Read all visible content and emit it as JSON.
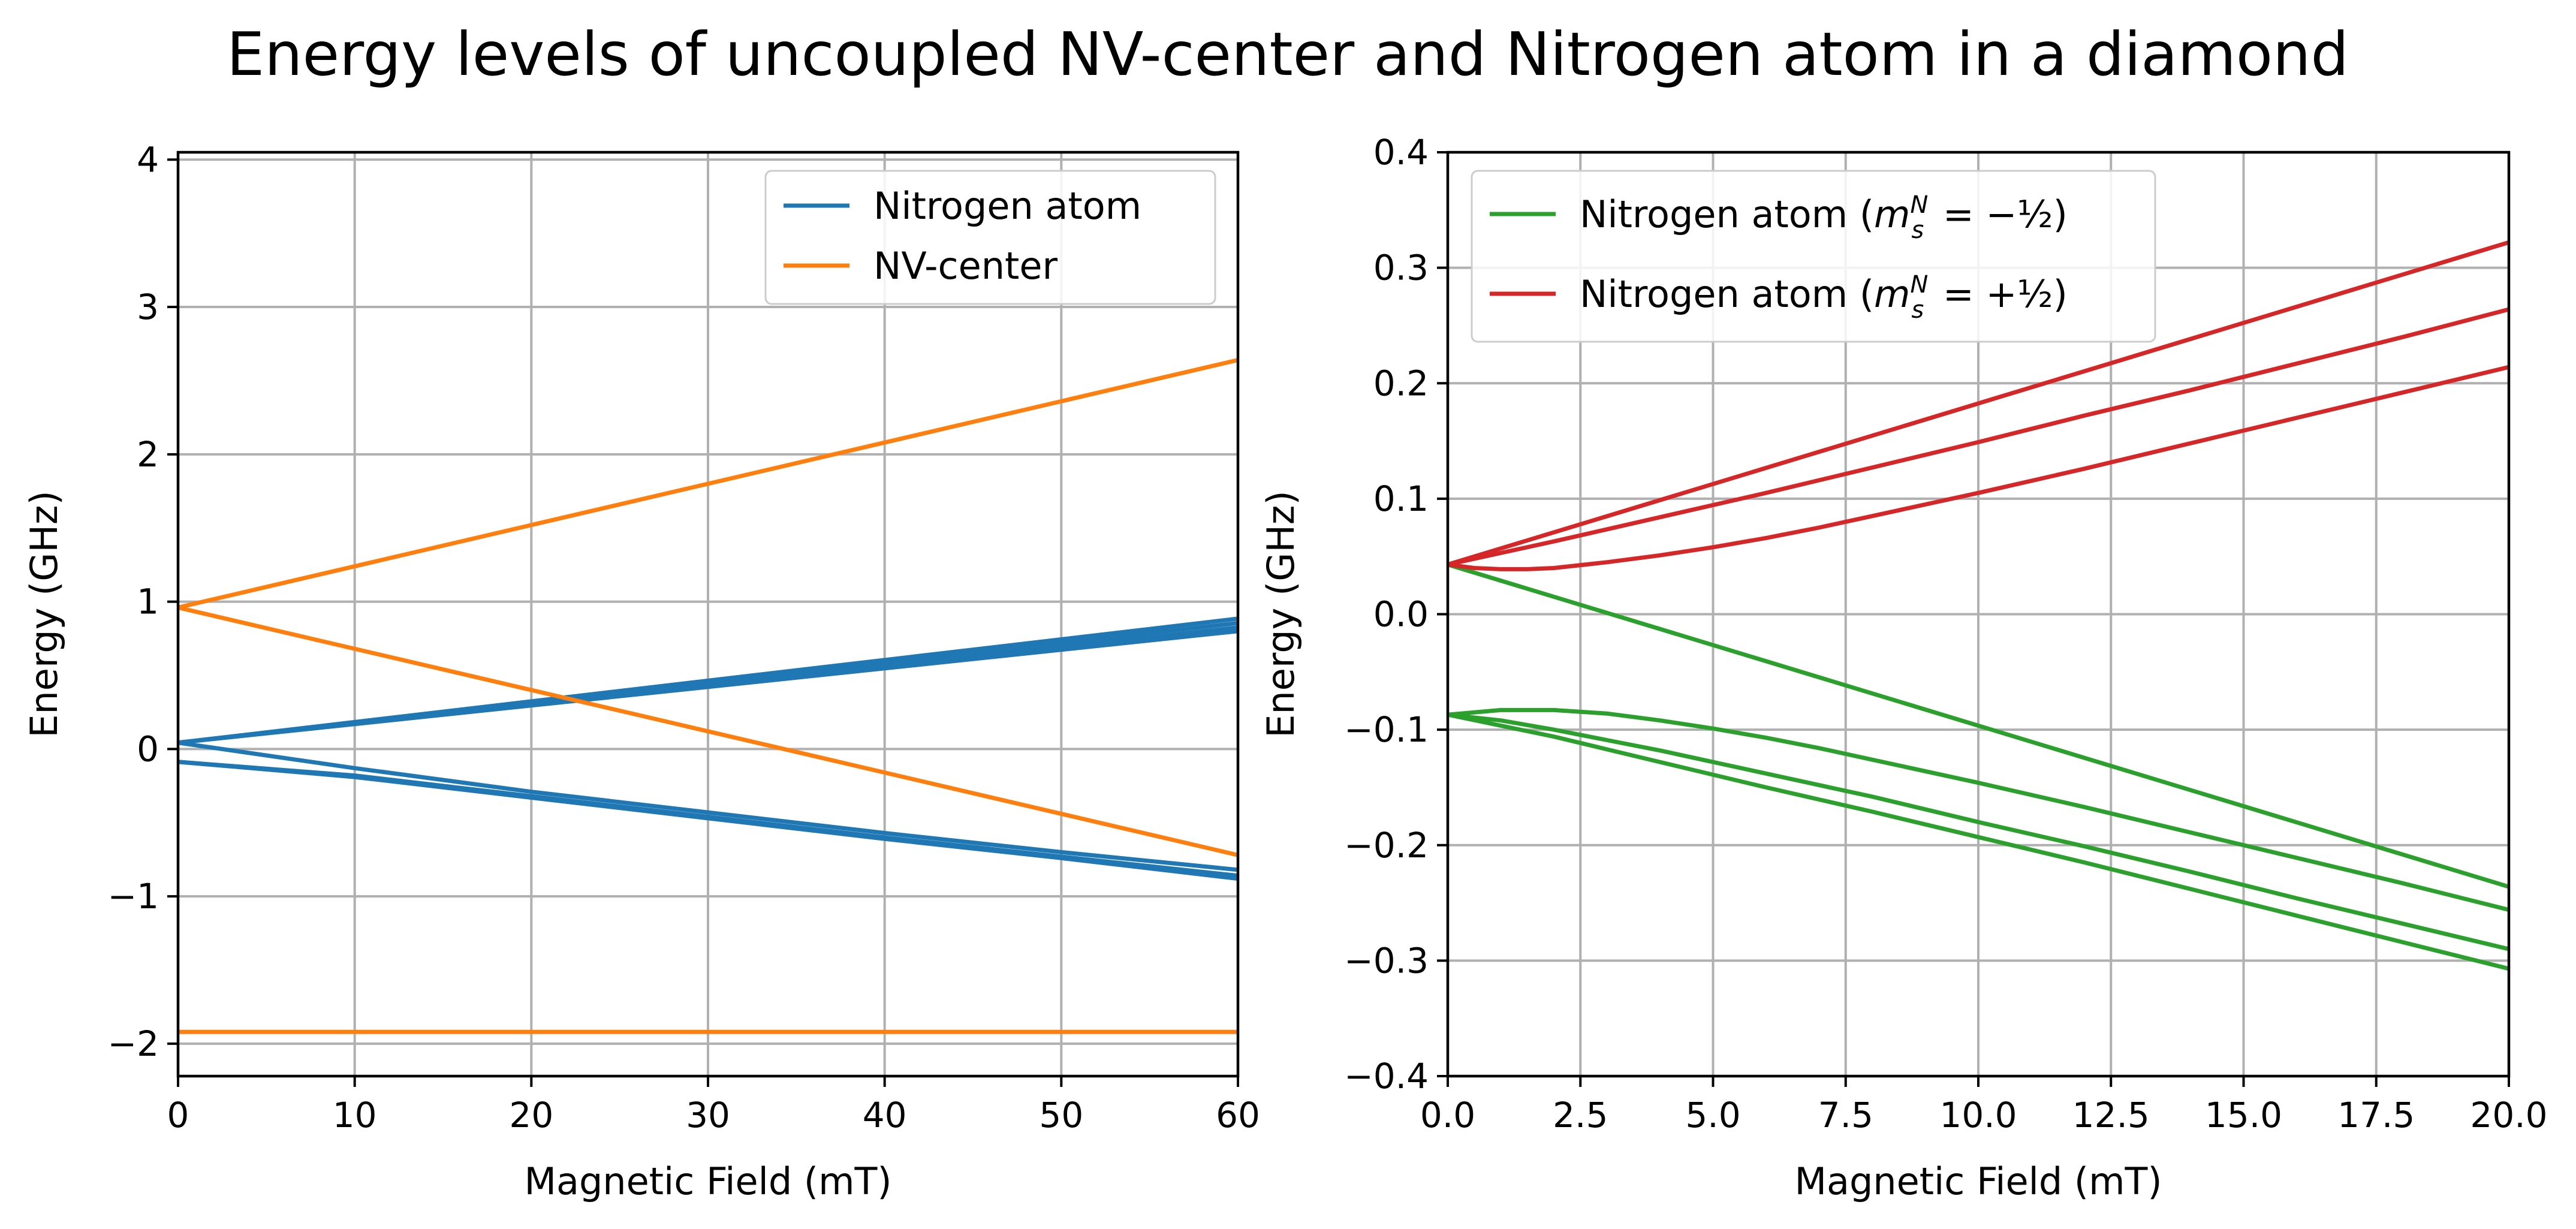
{
  "figure": {
    "suptitle": "Energy levels of uncoupled NV-center and Nitrogen atom in a diamond"
  },
  "chart_data": [
    {
      "type": "line",
      "title": "",
      "xlabel": "Magnetic Field (mT)",
      "ylabel": "Energy (GHz)",
      "xlim": [
        0,
        60
      ],
      "ylim": [
        -2.22,
        4.05
      ],
      "xticks": [
        0,
        10,
        20,
        30,
        40,
        50,
        60
      ],
      "xtick_labels": [
        "0",
        "10",
        "20",
        "30",
        "40",
        "50",
        "60"
      ],
      "yticks": [
        -2,
        -1,
        0,
        1,
        2,
        3,
        4
      ],
      "ytick_labels": [
        "−2",
        "−1",
        "0",
        "1",
        "2",
        "3",
        "4"
      ],
      "grid": true,
      "legend_position": "top-right",
      "legend": [
        {
          "label": "Nitrogen atom",
          "color": "#1f77b4"
        },
        {
          "label": "NV-center",
          "color": "#ff7f0e"
        }
      ],
      "series": [
        {
          "legend": "Nitrogen atom",
          "color": "#1f77b4",
          "x": [
            0,
            60
          ],
          "y": [
            0.043,
            0.885
          ]
        },
        {
          "legend": "Nitrogen atom",
          "color": "#1f77b4",
          "x": [
            0,
            60
          ],
          "y": [
            0.043,
            0.855
          ]
        },
        {
          "legend": "Nitrogen atom",
          "color": "#1f77b4",
          "x": [
            0,
            60
          ],
          "y": [
            0.043,
            0.825
          ]
        },
        {
          "legend": "Nitrogen atom",
          "color": "#1f77b4",
          "x": [
            0,
            60
          ],
          "y": [
            0.043,
            0.8
          ]
        },
        {
          "legend": "Nitrogen atom",
          "color": "#1f77b4",
          "x": [
            0,
            10,
            20,
            30,
            40,
            50,
            60
          ],
          "y": [
            0.043,
            -0.13,
            -0.29,
            -0.43,
            -0.57,
            -0.7,
            -0.82
          ]
        },
        {
          "legend": "Nitrogen atom",
          "color": "#1f77b4",
          "x": [
            0,
            10,
            20,
            30,
            40,
            50,
            60
          ],
          "y": [
            -0.087,
            -0.18,
            -0.32,
            -0.46,
            -0.6,
            -0.73,
            -0.86
          ]
        },
        {
          "legend": "Nitrogen atom",
          "color": "#1f77b4",
          "x": [
            0,
            10,
            20,
            30,
            40,
            50,
            60
          ],
          "y": [
            -0.087,
            -0.19,
            -0.33,
            -0.47,
            -0.61,
            -0.74,
            -0.88
          ]
        },
        {
          "legend": "NV-center",
          "color": "#ff7f0e",
          "x": [
            0,
            60
          ],
          "y": [
            0.96,
            2.64
          ]
        },
        {
          "legend": "NV-center",
          "color": "#ff7f0e",
          "x": [
            0,
            60
          ],
          "y": [
            0.96,
            -0.72
          ]
        },
        {
          "legend": "NV-center",
          "color": "#ff7f0e",
          "x": [
            0,
            60
          ],
          "y": [
            -1.92,
            -1.92
          ]
        }
      ]
    },
    {
      "type": "line",
      "title": "",
      "xlabel": "Magnetic Field (mT)",
      "ylabel": "Energy (GHz)",
      "xlim": [
        0,
        20
      ],
      "ylim": [
        -0.4,
        0.4
      ],
      "xticks": [
        0,
        2.5,
        5,
        7.5,
        10,
        12.5,
        15,
        17.5,
        20
      ],
      "xtick_labels": [
        "0.0",
        "2.5",
        "5.0",
        "7.5",
        "10.0",
        "12.5",
        "15.0",
        "17.5",
        "20.0"
      ],
      "yticks": [
        -0.4,
        -0.3,
        -0.2,
        -0.1,
        0,
        0.1,
        0.2,
        0.3,
        0.4
      ],
      "ytick_labels": [
        "−0.4",
        "−0.3",
        "−0.2",
        "−0.1",
        "0.0",
        "0.1",
        "0.2",
        "0.3",
        "0.4"
      ],
      "grid": true,
      "legend_position": "top-left",
      "legend": [
        {
          "label": "Nitrogen atom (",
          "math": "m_s^N = −½",
          "label_end": ")",
          "color": "#2ca02c"
        },
        {
          "label": "Nitrogen atom (",
          "math": "m_s^N = +½",
          "label_end": ")",
          "color": "#d62728"
        }
      ],
      "series": [
        {
          "legend": "Nitrogen atom (m_s^N = −1/2)",
          "color": "#2ca02c",
          "x": [
            0,
            20
          ],
          "y": [
            0.043,
            -0.236
          ]
        },
        {
          "legend": "Nitrogen atom (m_s^N = −1/2)",
          "color": "#2ca02c",
          "x": [
            0,
            1,
            2,
            3,
            4,
            5,
            6,
            7,
            8,
            10,
            12,
            14,
            16,
            18,
            20
          ],
          "y": [
            -0.087,
            -0.083,
            -0.083,
            -0.086,
            -0.092,
            -0.099,
            -0.107,
            -0.116,
            -0.126,
            -0.146,
            -0.167,
            -0.189,
            -0.211,
            -0.233,
            -0.256
          ]
        },
        {
          "legend": "Nitrogen atom (m_s^N = −1/2)",
          "color": "#2ca02c",
          "x": [
            0,
            1,
            2,
            3,
            4,
            5,
            6,
            7,
            8,
            10,
            12,
            14,
            16,
            18,
            20
          ],
          "y": [
            -0.087,
            -0.092,
            -0.1,
            -0.109,
            -0.118,
            -0.128,
            -0.138,
            -0.148,
            -0.158,
            -0.18,
            -0.201,
            -0.223,
            -0.246,
            -0.268,
            -0.29
          ]
        },
        {
          "legend": "Nitrogen atom (m_s^N = −1/2)",
          "color": "#2ca02c",
          "x": [
            0,
            2,
            4,
            6,
            8,
            10,
            12,
            14,
            16,
            18,
            20
          ],
          "y": [
            -0.087,
            -0.106,
            -0.128,
            -0.15,
            -0.171,
            -0.193,
            -0.215,
            -0.238,
            -0.261,
            -0.284,
            -0.307
          ]
        },
        {
          "legend": "Nitrogen atom (m_s^N = +1/2)",
          "color": "#d62728",
          "x": [
            0,
            20
          ],
          "y": [
            0.043,
            0.322
          ]
        },
        {
          "legend": "Nitrogen atom (m_s^N = +1/2)",
          "color": "#d62728",
          "x": [
            0,
            2,
            4,
            6,
            8,
            10,
            12,
            14,
            16,
            18,
            20
          ],
          "y": [
            0.043,
            0.063,
            0.084,
            0.105,
            0.127,
            0.149,
            0.172,
            0.194,
            0.217,
            0.24,
            0.264
          ]
        },
        {
          "legend": "Nitrogen atom (m_s^N = +1/2)",
          "color": "#d62728",
          "x": [
            0,
            0.5,
            1,
            1.5,
            2,
            3,
            4,
            5,
            6,
            7,
            8,
            10,
            12,
            14,
            16,
            18,
            20
          ],
          "y": [
            0.043,
            0.04,
            0.039,
            0.039,
            0.04,
            0.045,
            0.051,
            0.058,
            0.066,
            0.075,
            0.085,
            0.105,
            0.126,
            0.148,
            0.17,
            0.192,
            0.214
          ]
        }
      ]
    }
  ]
}
